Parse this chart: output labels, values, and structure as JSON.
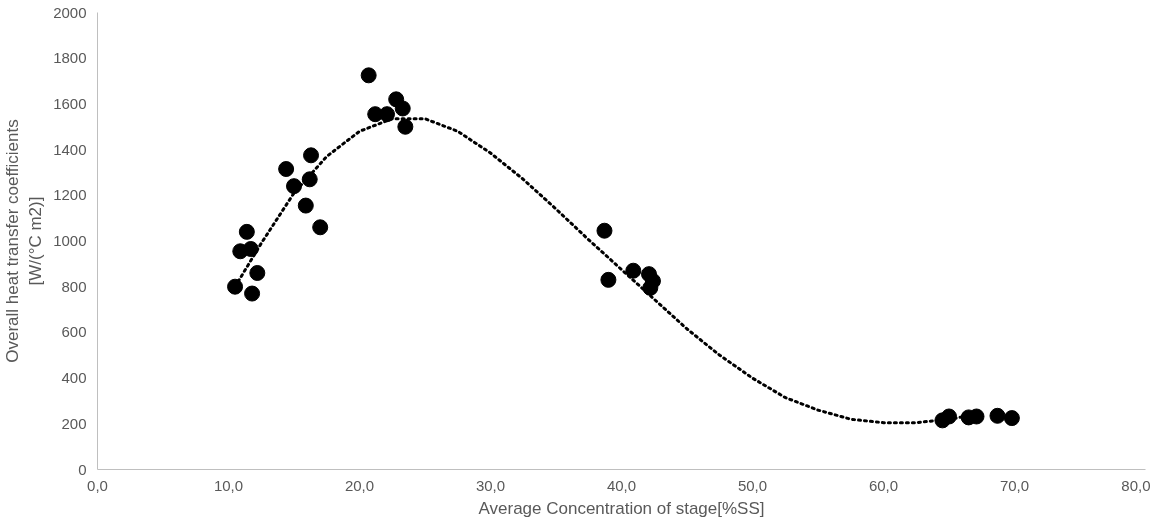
{
  "chart_data": {
    "type": "scatter",
    "xlabel": "Average Concentration of stage[%SS]",
    "ylabel": "Overall heat transfer coefficients\n[W/(°C m2)]",
    "xlim": [
      0,
      80
    ],
    "ylim": [
      0,
      2000
    ],
    "xticks": [
      {
        "value": 0,
        "label": "0,0"
      },
      {
        "value": 10,
        "label": "10,0"
      },
      {
        "value": 20,
        "label": "20,0"
      },
      {
        "value": 30,
        "label": "30,0"
      },
      {
        "value": 40,
        "label": "40,0"
      },
      {
        "value": 50,
        "label": "50,0"
      },
      {
        "value": 60,
        "label": "60,0"
      },
      {
        "value": 70,
        "label": "70,0"
      },
      {
        "value": 80,
        "label": "80,0"
      }
    ],
    "yticks": [
      0,
      200,
      400,
      600,
      800,
      1000,
      1200,
      1400,
      1600,
      1800,
      2000
    ],
    "grid": false,
    "series": [
      {
        "color": "#000000",
        "marker": "circle",
        "x": [
          10.5,
          10.9,
          11.4,
          11.7,
          11.8,
          12.2,
          14.4,
          15.0,
          15.9,
          16.3,
          16.2,
          17.0,
          20.7,
          21.2,
          22.1,
          22.8,
          23.3,
          23.5,
          38.7,
          39.0,
          40.9,
          42.1,
          42.2,
          42.4,
          64.5,
          65.0,
          66.5,
          67.1,
          68.7,
          69.8
        ],
        "values": [
          800,
          955,
          1040,
          965,
          770,
          860,
          1315,
          1240,
          1155,
          1375,
          1270,
          1060,
          1725,
          1555,
          1555,
          1620,
          1580,
          1500,
          1045,
          830,
          870,
          855,
          795,
          825,
          215,
          232,
          228,
          232,
          235,
          225
        ]
      },
      {
        "type": "line",
        "color": "#000000",
        "line_style": "dotted",
        "x": [
          10.5,
          12.5,
          15,
          17.5,
          20,
          22.5,
          25,
          27.5,
          30,
          32.5,
          35,
          37.5,
          40,
          42.5,
          45,
          47.5,
          50,
          52.5,
          55,
          57.5,
          60,
          62.5,
          65,
          66.5
        ],
        "values": [
          800,
          990,
          1210,
          1370,
          1480,
          1535,
          1535,
          1480,
          1385,
          1270,
          1140,
          1005,
          875,
          745,
          615,
          500,
          400,
          315,
          260,
          220,
          205,
          205,
          220,
          235
        ]
      }
    ]
  }
}
